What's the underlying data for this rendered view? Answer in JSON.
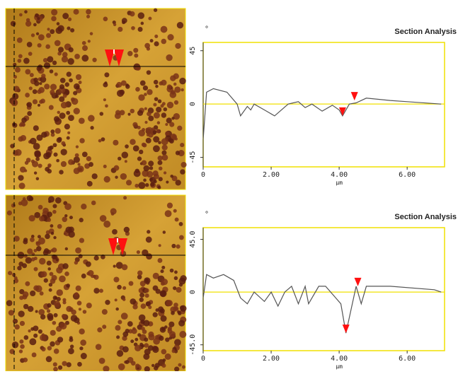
{
  "chart_data": [
    {
      "type": "line",
      "title": "Section Analysis",
      "y_unit": "°",
      "x_label": "µm",
      "x": [
        0,
        0.1,
        0.3,
        0.7,
        1.0,
        1.1,
        1.3,
        1.4,
        1.5,
        1.8,
        2.1,
        2.5,
        2.8,
        3.0,
        3.2,
        3.5,
        3.8,
        4.0,
        4.1,
        4.3,
        4.5,
        4.8,
        5.5,
        6.0,
        7.0
      ],
      "values": [
        -30,
        10,
        13,
        10,
        0,
        -10,
        -2,
        -5,
        0,
        -5,
        -10,
        0,
        2,
        -3,
        0,
        -6,
        -1,
        -5,
        -10,
        0,
        1,
        5,
        3,
        2,
        0
      ],
      "color": "#555555",
      "cursors": [
        {
          "x": 4.1,
          "y": -10
        },
        {
          "x": 4.45,
          "y": 3
        }
      ],
      "cursor_color": "#ff1010",
      "xlim": [
        0,
        7.1
      ],
      "ylim": [
        -53,
        52
      ],
      "xticks": [
        0,
        {
          "value": 2,
          "label": "2.00"
        },
        {
          "value": 4,
          "label": "4.00"
        },
        {
          "value": 6,
          "label": "6.00"
        }
      ],
      "yticks": [
        45,
        0,
        -45
      ]
    },
    {
      "type": "line",
      "title": "Section Analysis",
      "y_unit": "°",
      "x_label": "µm",
      "x": [
        0,
        0.1,
        0.3,
        0.6,
        0.9,
        1.1,
        1.3,
        1.5,
        1.8,
        2.0,
        2.2,
        2.4,
        2.6,
        2.8,
        3.0,
        3.1,
        3.4,
        3.6,
        3.9,
        4.05,
        4.2,
        4.35,
        4.5,
        4.65,
        4.8,
        5.5,
        6.8,
        7.0
      ],
      "values": [
        -5,
        15,
        12,
        15,
        10,
        -5,
        -10,
        0,
        -8,
        0,
        -12,
        0,
        5,
        -10,
        5,
        -10,
        5,
        5,
        -5,
        -10,
        -35,
        -15,
        5,
        -10,
        5,
        5,
        2,
        0
      ],
      "color": "#555555",
      "cursors": [
        {
          "x": 4.2,
          "y": -35
        },
        {
          "x": 4.55,
          "y": 5
        }
      ],
      "cursor_color": "#ff1010",
      "xlim": [
        0,
        7.1
      ],
      "ylim": [
        -50,
        55
      ],
      "xticks": [
        0,
        {
          "value": 2,
          "label": "2.00"
        },
        {
          "value": 4,
          "label": "4.00"
        },
        {
          "value": 6,
          "label": "6.00"
        }
      ],
      "yticks": [
        {
          "value": 45,
          "label": "45.0"
        },
        0,
        {
          "value": -45,
          "label": "-45.0"
        }
      ]
    }
  ]
}
